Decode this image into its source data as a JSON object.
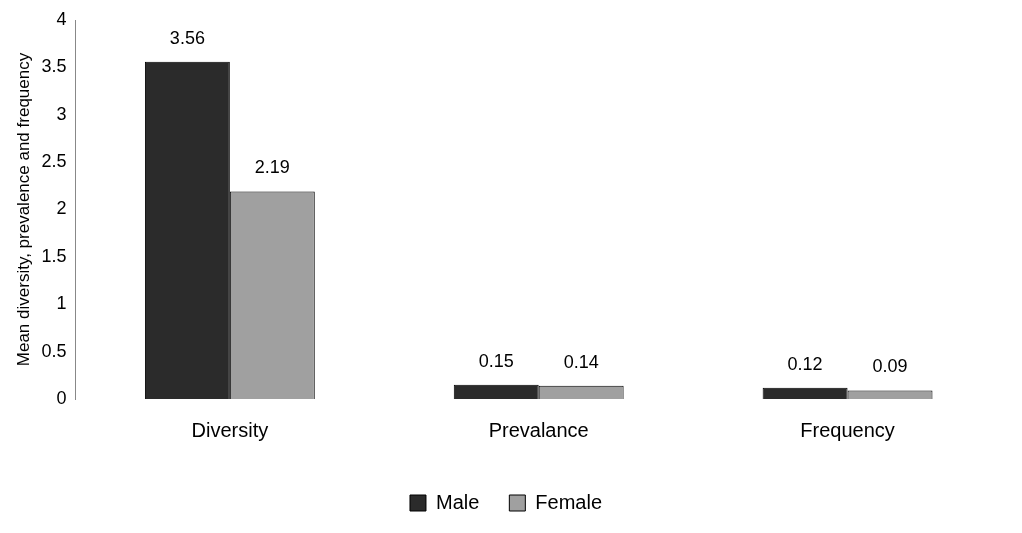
{
  "chart_data": {
    "type": "bar",
    "ylabel": "Mean diversity, prevalence and frequency",
    "categories": [
      "Diversity",
      "Prevalance",
      "Frequency"
    ],
    "series": [
      {
        "name": "Male",
        "color": "#2b2b2b",
        "values": [
          3.56,
          0.15,
          0.12
        ]
      },
      {
        "name": "Female",
        "color": "#a0a0a0",
        "values": [
          2.19,
          0.14,
          0.09
        ]
      }
    ],
    "ylim": [
      0,
      4
    ],
    "yticks": [
      0,
      0.5,
      1,
      1.5,
      2,
      2.5,
      3,
      3.5,
      4
    ],
    "data_labels": true,
    "legend": "bottom",
    "grid": false
  }
}
